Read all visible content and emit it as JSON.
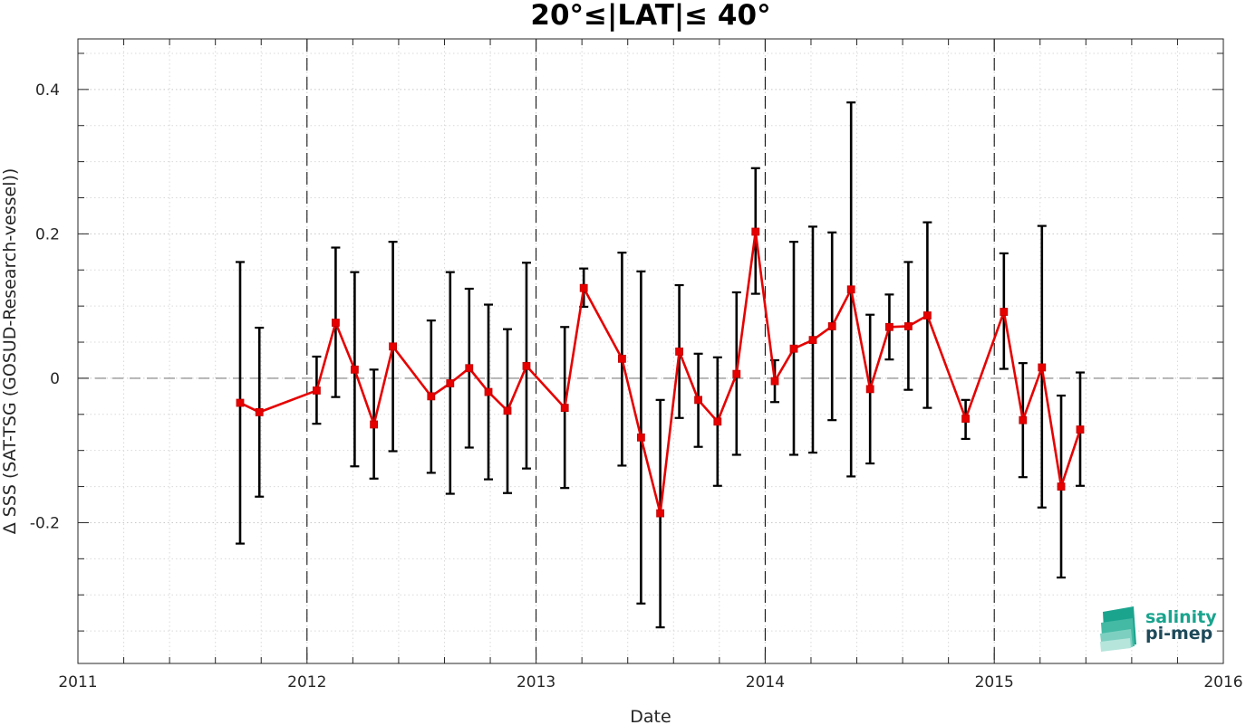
{
  "chart_data": {
    "type": "line",
    "title": "20°≤|LAT|≤ 40°",
    "xlabel": "Date",
    "ylabel": "Δ SSS (SAT-TSG (GOSUD-Research-vessel))",
    "xlim": [
      2011,
      2016
    ],
    "ylim": [
      -0.395,
      0.47
    ],
    "x_ticks": [
      2011,
      2012,
      2013,
      2014,
      2015,
      2016
    ],
    "x_tick_labels": [
      "2011",
      "2012",
      "2013",
      "2014",
      "2015",
      "2016"
    ],
    "y_ticks": [
      -0.2,
      0,
      0.2,
      0.4
    ],
    "y_tick_labels": [
      "-0.2",
      "0",
      "0.2",
      "0.4"
    ],
    "grid": true,
    "reference_line": 0,
    "year_boundaries": [
      2012,
      2013,
      2014,
      2015
    ],
    "colors": {
      "line": "#e60000",
      "errorbar": "#000000",
      "zero_line": "#808080"
    },
    "series": [
      {
        "points": [
          {
            "x": 2011.708,
            "y": -0.034,
            "lo": -0.229,
            "hi": 0.161
          },
          {
            "x": 2011.792,
            "y": -0.047,
            "lo": -0.164,
            "hi": 0.07
          },
          {
            "x": 2012.042,
            "y": -0.017,
            "lo": -0.063,
            "hi": 0.03
          },
          {
            "x": 2012.125,
            "y": 0.077,
            "lo": -0.026,
            "hi": 0.181
          },
          {
            "x": 2012.208,
            "y": 0.012,
            "lo": -0.122,
            "hi": 0.147
          },
          {
            "x": 2012.292,
            "y": -0.064,
            "lo": -0.139,
            "hi": 0.012
          },
          {
            "x": 2012.375,
            "y": 0.044,
            "lo": -0.101,
            "hi": 0.189
          },
          {
            "x": 2012.542,
            "y": -0.025,
            "lo": -0.131,
            "hi": 0.08
          },
          {
            "x": 2012.625,
            "y": -0.007,
            "lo": -0.16,
            "hi": 0.147
          },
          {
            "x": 2012.708,
            "y": 0.014,
            "lo": -0.096,
            "hi": 0.124
          },
          {
            "x": 2012.792,
            "y": -0.019,
            "lo": -0.14,
            "hi": 0.102
          },
          {
            "x": 2012.875,
            "y": -0.045,
            "lo": -0.159,
            "hi": 0.068
          },
          {
            "x": 2012.958,
            "y": 0.017,
            "lo": -0.125,
            "hi": 0.16
          },
          {
            "x": 2013.125,
            "y": -0.041,
            "lo": -0.152,
            "hi": 0.071
          },
          {
            "x": 2013.208,
            "y": 0.125,
            "lo": 0.099,
            "hi": 0.152
          },
          {
            "x": 2013.375,
            "y": 0.027,
            "lo": -0.121,
            "hi": 0.174
          },
          {
            "x": 2013.458,
            "y": -0.082,
            "lo": -0.312,
            "hi": 0.148
          },
          {
            "x": 2013.542,
            "y": -0.187,
            "lo": -0.345,
            "hi": -0.03
          },
          {
            "x": 2013.625,
            "y": 0.037,
            "lo": -0.055,
            "hi": 0.129
          },
          {
            "x": 2013.708,
            "y": -0.03,
            "lo": -0.095,
            "hi": 0.034
          },
          {
            "x": 2013.792,
            "y": -0.06,
            "lo": -0.149,
            "hi": 0.029
          },
          {
            "x": 2013.875,
            "y": 0.006,
            "lo": -0.106,
            "hi": 0.119
          },
          {
            "x": 2013.958,
            "y": 0.203,
            "lo": 0.117,
            "hi": 0.291
          },
          {
            "x": 2014.042,
            "y": -0.004,
            "lo": -0.033,
            "hi": 0.025
          },
          {
            "x": 2014.125,
            "y": 0.041,
            "lo": -0.106,
            "hi": 0.189
          },
          {
            "x": 2014.208,
            "y": 0.053,
            "lo": -0.103,
            "hi": 0.21
          },
          {
            "x": 2014.292,
            "y": 0.072,
            "lo": -0.058,
            "hi": 0.202
          },
          {
            "x": 2014.375,
            "y": 0.123,
            "lo": -0.136,
            "hi": 0.382
          },
          {
            "x": 2014.458,
            "y": -0.015,
            "lo": -0.118,
            "hi": 0.088
          },
          {
            "x": 2014.542,
            "y": 0.071,
            "lo": 0.026,
            "hi": 0.116
          },
          {
            "x": 2014.625,
            "y": 0.072,
            "lo": -0.016,
            "hi": 0.161
          },
          {
            "x": 2014.708,
            "y": 0.087,
            "lo": -0.041,
            "hi": 0.216
          },
          {
            "x": 2014.875,
            "y": -0.056,
            "lo": -0.084,
            "hi": -0.03
          },
          {
            "x": 2015.042,
            "y": 0.092,
            "lo": 0.013,
            "hi": 0.173
          },
          {
            "x": 2015.125,
            "y": -0.058,
            "lo": -0.137,
            "hi": 0.021
          },
          {
            "x": 2015.208,
            "y": 0.015,
            "lo": -0.179,
            "hi": 0.211
          },
          {
            "x": 2015.292,
            "y": -0.15,
            "lo": -0.276,
            "hi": -0.024
          },
          {
            "x": 2015.375,
            "y": -0.071,
            "lo": -0.149,
            "hi": 0.008
          }
        ]
      }
    ]
  },
  "logo": {
    "line1": "salinity",
    "line2": "pi-mep"
  }
}
